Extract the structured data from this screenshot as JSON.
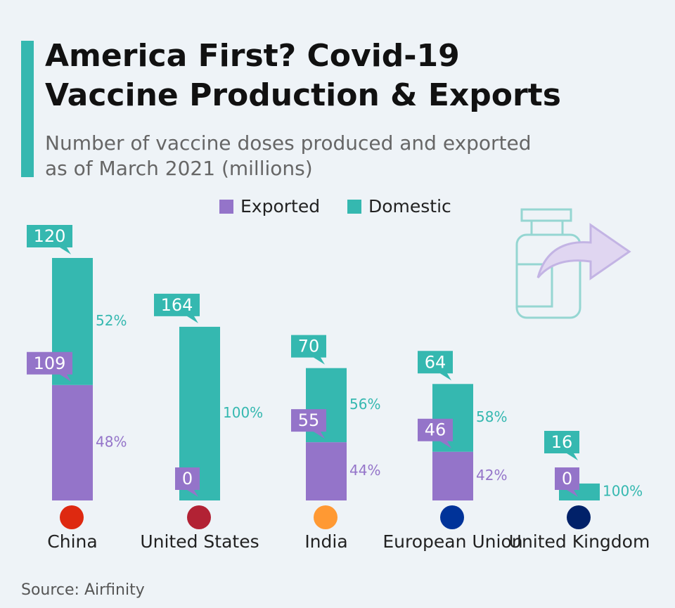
{
  "chart_data": {
    "type": "stacked-bar",
    "title": "America First? Covid-19 Vaccine Production & Exports",
    "subtitle": "Number of vaccine doses produced and exported as of March 2021 (millions)",
    "categories": [
      "China",
      "United States",
      "India",
      "European Union",
      "United Kingdom"
    ],
    "series": [
      {
        "name": "Exported",
        "color": "#9474c9",
        "values": [
          109,
          0,
          55,
          46,
          0
        ],
        "share_labels": [
          "48%",
          null,
          "44%",
          "42%",
          null
        ]
      },
      {
        "name": "Domestic",
        "color": "#35b8b0",
        "values": [
          120,
          164,
          70,
          64,
          16
        ],
        "share_labels": [
          "52%",
          "100%",
          "56%",
          "58%",
          "100%"
        ]
      }
    ],
    "legend": "top",
    "source": "Source: Airfinity"
  }
}
